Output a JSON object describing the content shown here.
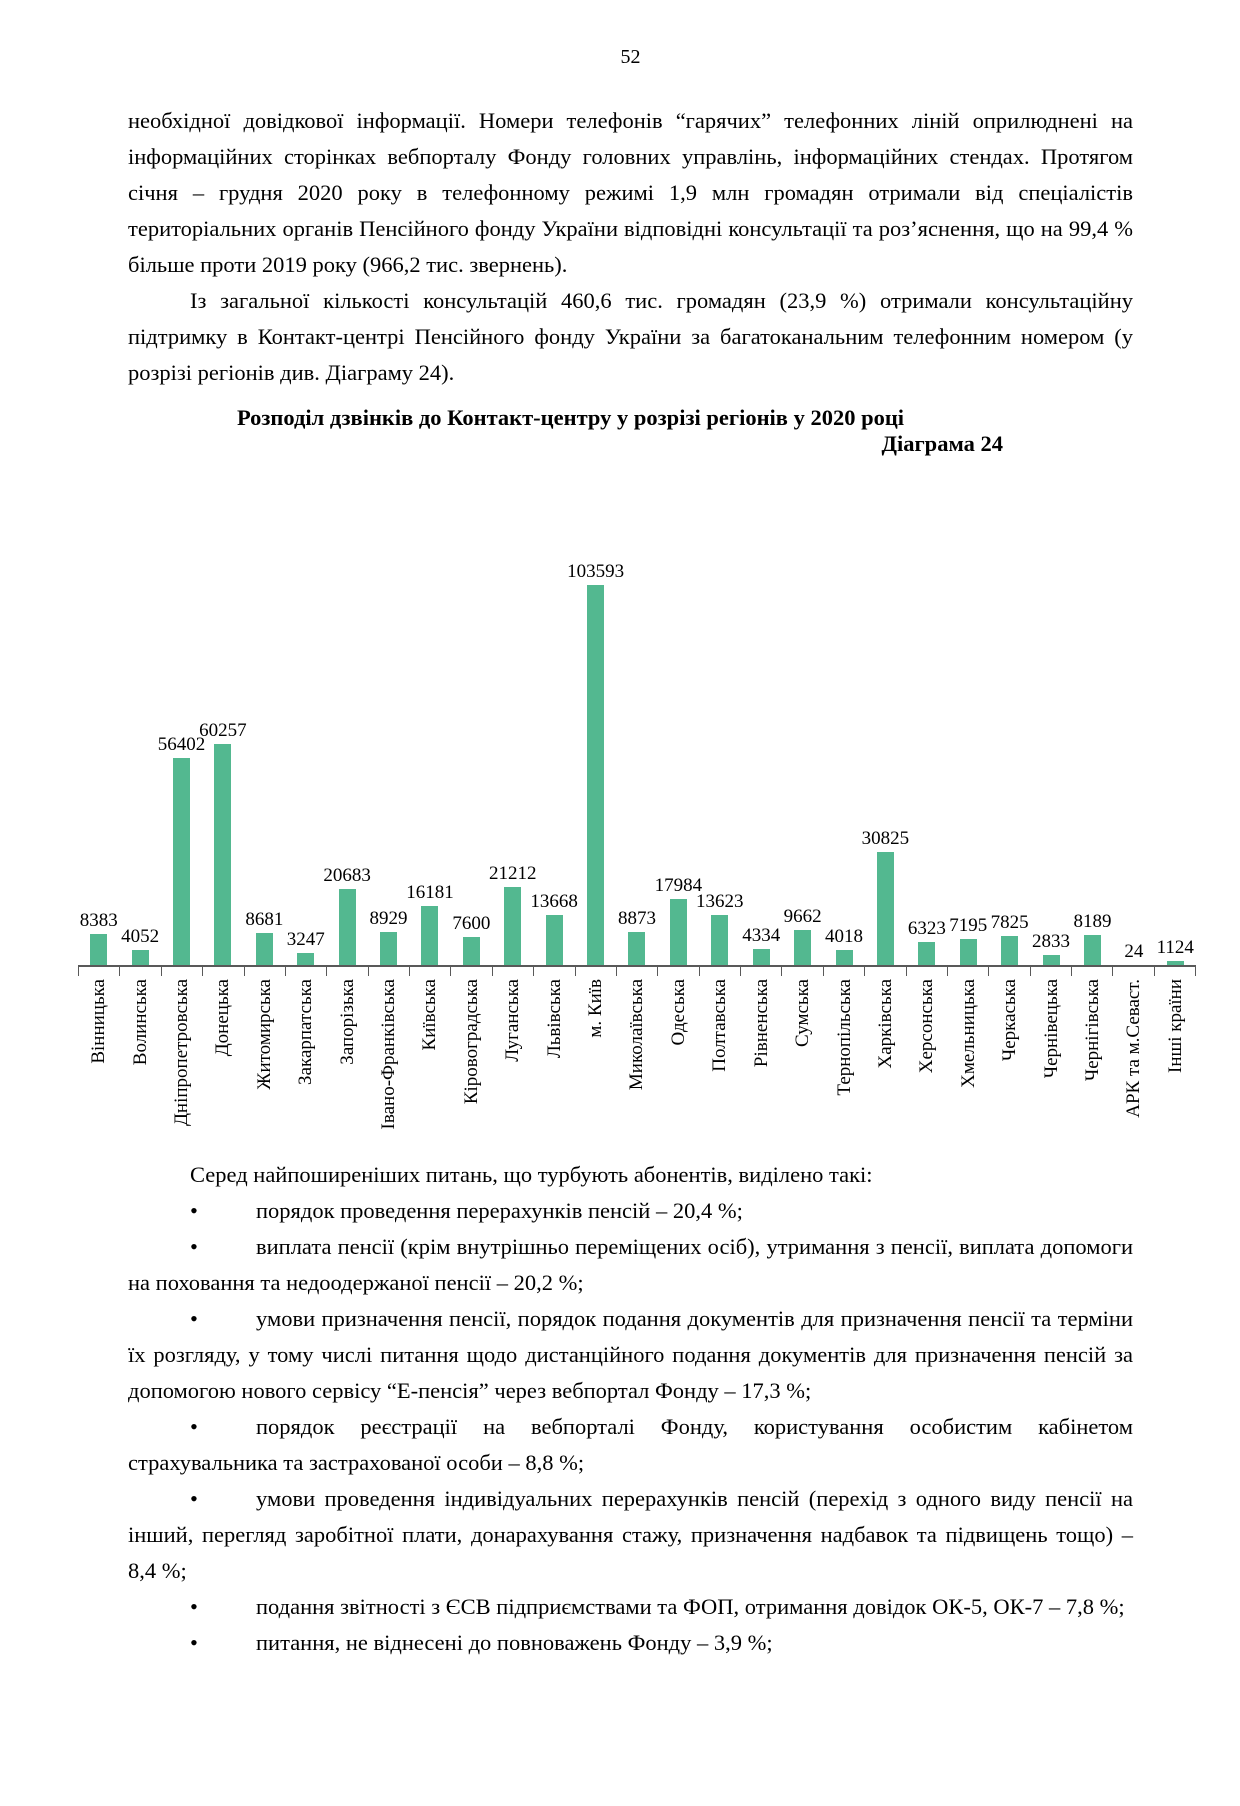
{
  "page": {
    "number": "52"
  },
  "body": {
    "paragraph1": "необхідної довідкової інформації. Номери телефонів “гарячих” телефонних ліній оприлюднені на інформаційних сторінках вебпорталу Фонду головних управлінь, інформаційних стендах. Протягом січня – грудня 2020 року в телефонному режимі 1,9 млн громадян отримали від спеціалістів територіальних органів Пенсійного фонду України відповідні консультації та роз’яснення, що на 99,4 % більше проти 2019 року (966,2 тис. звернень).",
    "paragraph2": "Із загальної кількості консультацій 460,6 тис. громадян (23,9 %) отримали консультаційну підтримку в Контакт-центрі Пенсійного фонду України за багатоканальним телефонним номером (у розрізі регіонів див. Діаграму 24).",
    "list_intro": "Серед найпоширеніших питань, що турбують абонентів, виділено такі:",
    "bullet_glyph": "•",
    "bullets": [
      "порядок проведення перерахунків пенсій – 20,4 %;",
      "виплата пенсії (крім внутрішньо переміщених осіб), утримання з пенсії, виплата допомоги на поховання та недоодержаної пенсії – 20,2 %;",
      "умови призначення пенсії, порядок подання документів для призначення пенсії та терміни їх розгляду, у тому числі питання щодо дистанційного подання документів для призначення пенсій за допомогою нового сервісу “Е-пенсія” через вебпортал Фонду – 17,3 %;",
      "порядок реєстрації на вебпорталі Фонду, користування особистим кабінетом страхувальника та застрахованої особи – 8,8 %;",
      "умови проведення індивідуальних перерахунків пенсій (перехід з одного виду пенсії на інший, перегляд заробітної плати, донарахування стажу, призначення надбавок та підвищень тощо) – 8,4 %;",
      "подання звітності з ЄСВ підприємствами та ФОП, отримання довідок ОК-5, ОК-7 – 7,8 %;",
      "питання, не віднесені до повноважень Фонду – 3,9 %;"
    ]
  },
  "chart_data": {
    "type": "bar",
    "title": "Розподіл дзвінків до Контакт-центру у розрізі регіонів у 2020 році",
    "caption": "Діаграма 24",
    "categories": [
      "Вінницька",
      "Волинська",
      "Дніпропетровська",
      "Донецька",
      "Житомирська",
      "Закарпатська",
      "Запорізька",
      "Івано-Франківська",
      "Київська",
      "Кіровоградська",
      "Луганська",
      "Львівська",
      "м. Київ",
      "Миколаївська",
      "Одеська",
      "Полтавська",
      "Рівненська",
      "Сумська",
      "Тернопільська",
      "Харківська",
      "Херсонська",
      "Хмельницька",
      "Черкаська",
      "Чернівецька",
      "Чернігівська",
      "АРК та м.Севаст.",
      "Інші країни"
    ],
    "values": [
      8383,
      4052,
      56402,
      60257,
      8681,
      3247,
      20683,
      8929,
      16181,
      7600,
      21212,
      13668,
      103593,
      8873,
      17984,
      13623,
      4334,
      9662,
      4018,
      30825,
      6323,
      7195,
      7825,
      2833,
      8189,
      24,
      1124
    ],
    "bar_color": "#53B890",
    "axis_color": "#595959",
    "xlabel": "",
    "ylabel": "",
    "ylim": [
      0,
      110000
    ],
    "grid": false,
    "data_labels": true,
    "legend": "none",
    "x_label_rotation": 90
  }
}
